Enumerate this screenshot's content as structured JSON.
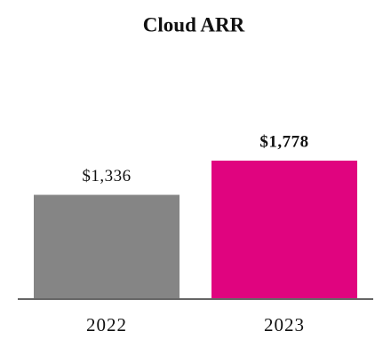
{
  "chart_data": {
    "type": "bar",
    "title": "Cloud ARR",
    "categories": [
      "2022",
      "2023"
    ],
    "values": [
      1336,
      1778
    ],
    "value_labels": [
      "$1,336",
      "$1,778"
    ],
    "colors": [
      "#858585",
      "#e0047f"
    ]
  }
}
